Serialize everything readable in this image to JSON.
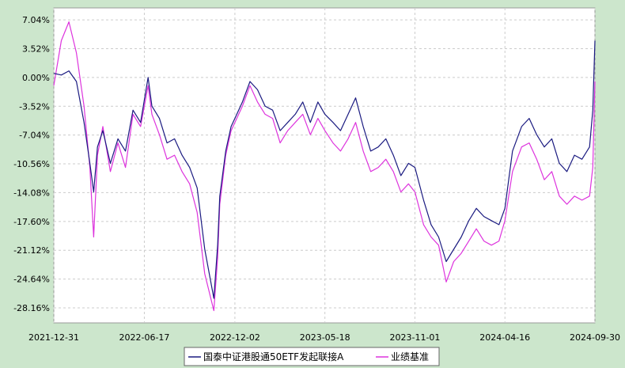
{
  "chart_data": {
    "type": "line",
    "grid": true,
    "legend_placement": "bottom-center",
    "x_ticks": [
      "2021-12-31",
      "2022-06-17",
      "2022-12-02",
      "2023-05-18",
      "2023-11-01",
      "2024-04-16",
      "2024-09-30"
    ],
    "y_ticks": [
      "7.04%",
      "3.52%",
      "0.00%",
      "-3.52%",
      "-7.04%",
      "-10.56%",
      "-14.08%",
      "-17.60%",
      "-21.12%",
      "-24.64%",
      "-28.16%"
    ],
    "ylim": [
      -30.0,
      8.5
    ],
    "series": [
      {
        "name": "国泰中证港股通50ETF发起联接A",
        "color": "#1a1a80",
        "x": [
          "2021-12-31",
          "2022-01-14",
          "2022-01-28",
          "2022-02-11",
          "2022-02-25",
          "2022-03-08",
          "2022-03-15",
          "2022-03-22",
          "2022-04-01",
          "2022-04-15",
          "2022-04-29",
          "2022-05-13",
          "2022-05-27",
          "2022-06-10",
          "2022-06-24",
          "2022-07-01",
          "2022-07-15",
          "2022-07-29",
          "2022-08-12",
          "2022-08-26",
          "2022-09-09",
          "2022-09-23",
          "2022-10-07",
          "2022-10-24",
          "2022-10-31",
          "2022-11-04",
          "2022-11-15",
          "2022-11-25",
          "2022-12-02",
          "2022-12-16",
          "2022-12-30",
          "2023-01-13",
          "2023-01-27",
          "2023-02-10",
          "2023-02-24",
          "2023-03-10",
          "2023-03-24",
          "2023-04-07",
          "2023-04-21",
          "2023-05-05",
          "2023-05-18",
          "2023-06-02",
          "2023-06-16",
          "2023-06-30",
          "2023-07-14",
          "2023-07-28",
          "2023-08-11",
          "2023-08-25",
          "2023-09-08",
          "2023-09-22",
          "2023-10-06",
          "2023-10-20",
          "2023-11-01",
          "2023-11-17",
          "2023-12-01",
          "2023-12-15",
          "2023-12-29",
          "2024-01-12",
          "2024-01-26",
          "2024-02-09",
          "2024-02-23",
          "2024-03-08",
          "2024-03-22",
          "2024-04-05",
          "2024-04-16",
          "2024-04-30",
          "2024-05-17",
          "2024-05-31",
          "2024-06-14",
          "2024-06-28",
          "2024-07-12",
          "2024-07-26",
          "2024-08-09",
          "2024-08-23",
          "2024-09-06",
          "2024-09-20",
          "2024-09-26",
          "2024-09-30"
        ],
        "values": [
          0.5,
          0.3,
          0.8,
          -0.5,
          -5.5,
          -10.5,
          -14.0,
          -8.5,
          -6.5,
          -10.5,
          -7.5,
          -9.0,
          -4.0,
          -5.5,
          0.0,
          -3.5,
          -5.0,
          -8.0,
          -7.5,
          -9.5,
          -11.0,
          -13.5,
          -21.0,
          -27.0,
          -20.5,
          -14.5,
          -9.0,
          -6.0,
          -5.0,
          -3.0,
          -0.5,
          -1.5,
          -3.5,
          -4.0,
          -6.5,
          -5.5,
          -4.5,
          -3.0,
          -5.5,
          -3.0,
          -4.5,
          -5.5,
          -6.5,
          -4.5,
          -2.5,
          -6.0,
          -9.0,
          -8.5,
          -7.5,
          -9.5,
          -12.0,
          -10.5,
          -11.0,
          -15.0,
          -18.0,
          -19.5,
          -22.5,
          -21.0,
          -19.5,
          -17.5,
          -16.0,
          -17.0,
          -17.5,
          -18.0,
          -16.0,
          -9.0,
          -6.0,
          -5.0,
          -7.0,
          -8.5,
          -7.5,
          -10.5,
          -11.5,
          -9.5,
          -10.0,
          -8.5,
          -4.0,
          4.5
        ]
      },
      {
        "name": "业绩基准",
        "color": "#dd33dd",
        "x": [
          "2021-12-31",
          "2022-01-14",
          "2022-01-28",
          "2022-02-11",
          "2022-02-25",
          "2022-03-08",
          "2022-03-15",
          "2022-03-22",
          "2022-04-01",
          "2022-04-15",
          "2022-04-29",
          "2022-05-13",
          "2022-05-27",
          "2022-06-10",
          "2022-06-24",
          "2022-07-01",
          "2022-07-15",
          "2022-07-29",
          "2022-08-12",
          "2022-08-26",
          "2022-09-09",
          "2022-09-23",
          "2022-10-07",
          "2022-10-24",
          "2022-10-31",
          "2022-11-04",
          "2022-11-15",
          "2022-11-25",
          "2022-12-02",
          "2022-12-16",
          "2022-12-30",
          "2023-01-13",
          "2023-01-27",
          "2023-02-10",
          "2023-02-24",
          "2023-03-10",
          "2023-03-24",
          "2023-04-07",
          "2023-04-21",
          "2023-05-05",
          "2023-05-18",
          "2023-06-02",
          "2023-06-16",
          "2023-06-30",
          "2023-07-14",
          "2023-07-28",
          "2023-08-11",
          "2023-08-25",
          "2023-09-08",
          "2023-09-22",
          "2023-10-06",
          "2023-10-20",
          "2023-11-01",
          "2023-11-17",
          "2023-12-01",
          "2023-12-15",
          "2023-12-29",
          "2024-01-12",
          "2024-01-26",
          "2024-02-09",
          "2024-02-23",
          "2024-03-08",
          "2024-03-22",
          "2024-04-05",
          "2024-04-16",
          "2024-04-30",
          "2024-05-17",
          "2024-05-31",
          "2024-06-14",
          "2024-06-28",
          "2024-07-12",
          "2024-07-26",
          "2024-08-09",
          "2024-08-23",
          "2024-09-06",
          "2024-09-20",
          "2024-09-26",
          "2024-09-30"
        ],
        "values": [
          -1.0,
          4.5,
          6.8,
          3.0,
          -3.5,
          -11.0,
          -19.5,
          -9.5,
          -6.0,
          -11.5,
          -8.0,
          -11.0,
          -4.5,
          -6.0,
          -1.0,
          -4.5,
          -7.0,
          -10.0,
          -9.5,
          -11.5,
          -13.0,
          -16.5,
          -24.0,
          -28.5,
          -22.0,
          -15.5,
          -9.5,
          -6.5,
          -5.5,
          -3.5,
          -1.0,
          -3.0,
          -4.5,
          -5.0,
          -8.0,
          -6.5,
          -5.5,
          -4.5,
          -7.0,
          -5.0,
          -6.5,
          -8.0,
          -9.0,
          -7.5,
          -5.5,
          -9.0,
          -11.5,
          -11.0,
          -10.0,
          -11.5,
          -14.0,
          -13.0,
          -14.0,
          -18.0,
          -19.5,
          -20.5,
          -25.0,
          -22.5,
          -21.5,
          -20.0,
          -18.5,
          -20.0,
          -20.5,
          -20.0,
          -17.5,
          -11.5,
          -8.5,
          -8.0,
          -10.0,
          -12.5,
          -11.5,
          -14.5,
          -15.5,
          -14.5,
          -15.0,
          -14.5,
          -11.0,
          -0.5
        ]
      }
    ]
  }
}
